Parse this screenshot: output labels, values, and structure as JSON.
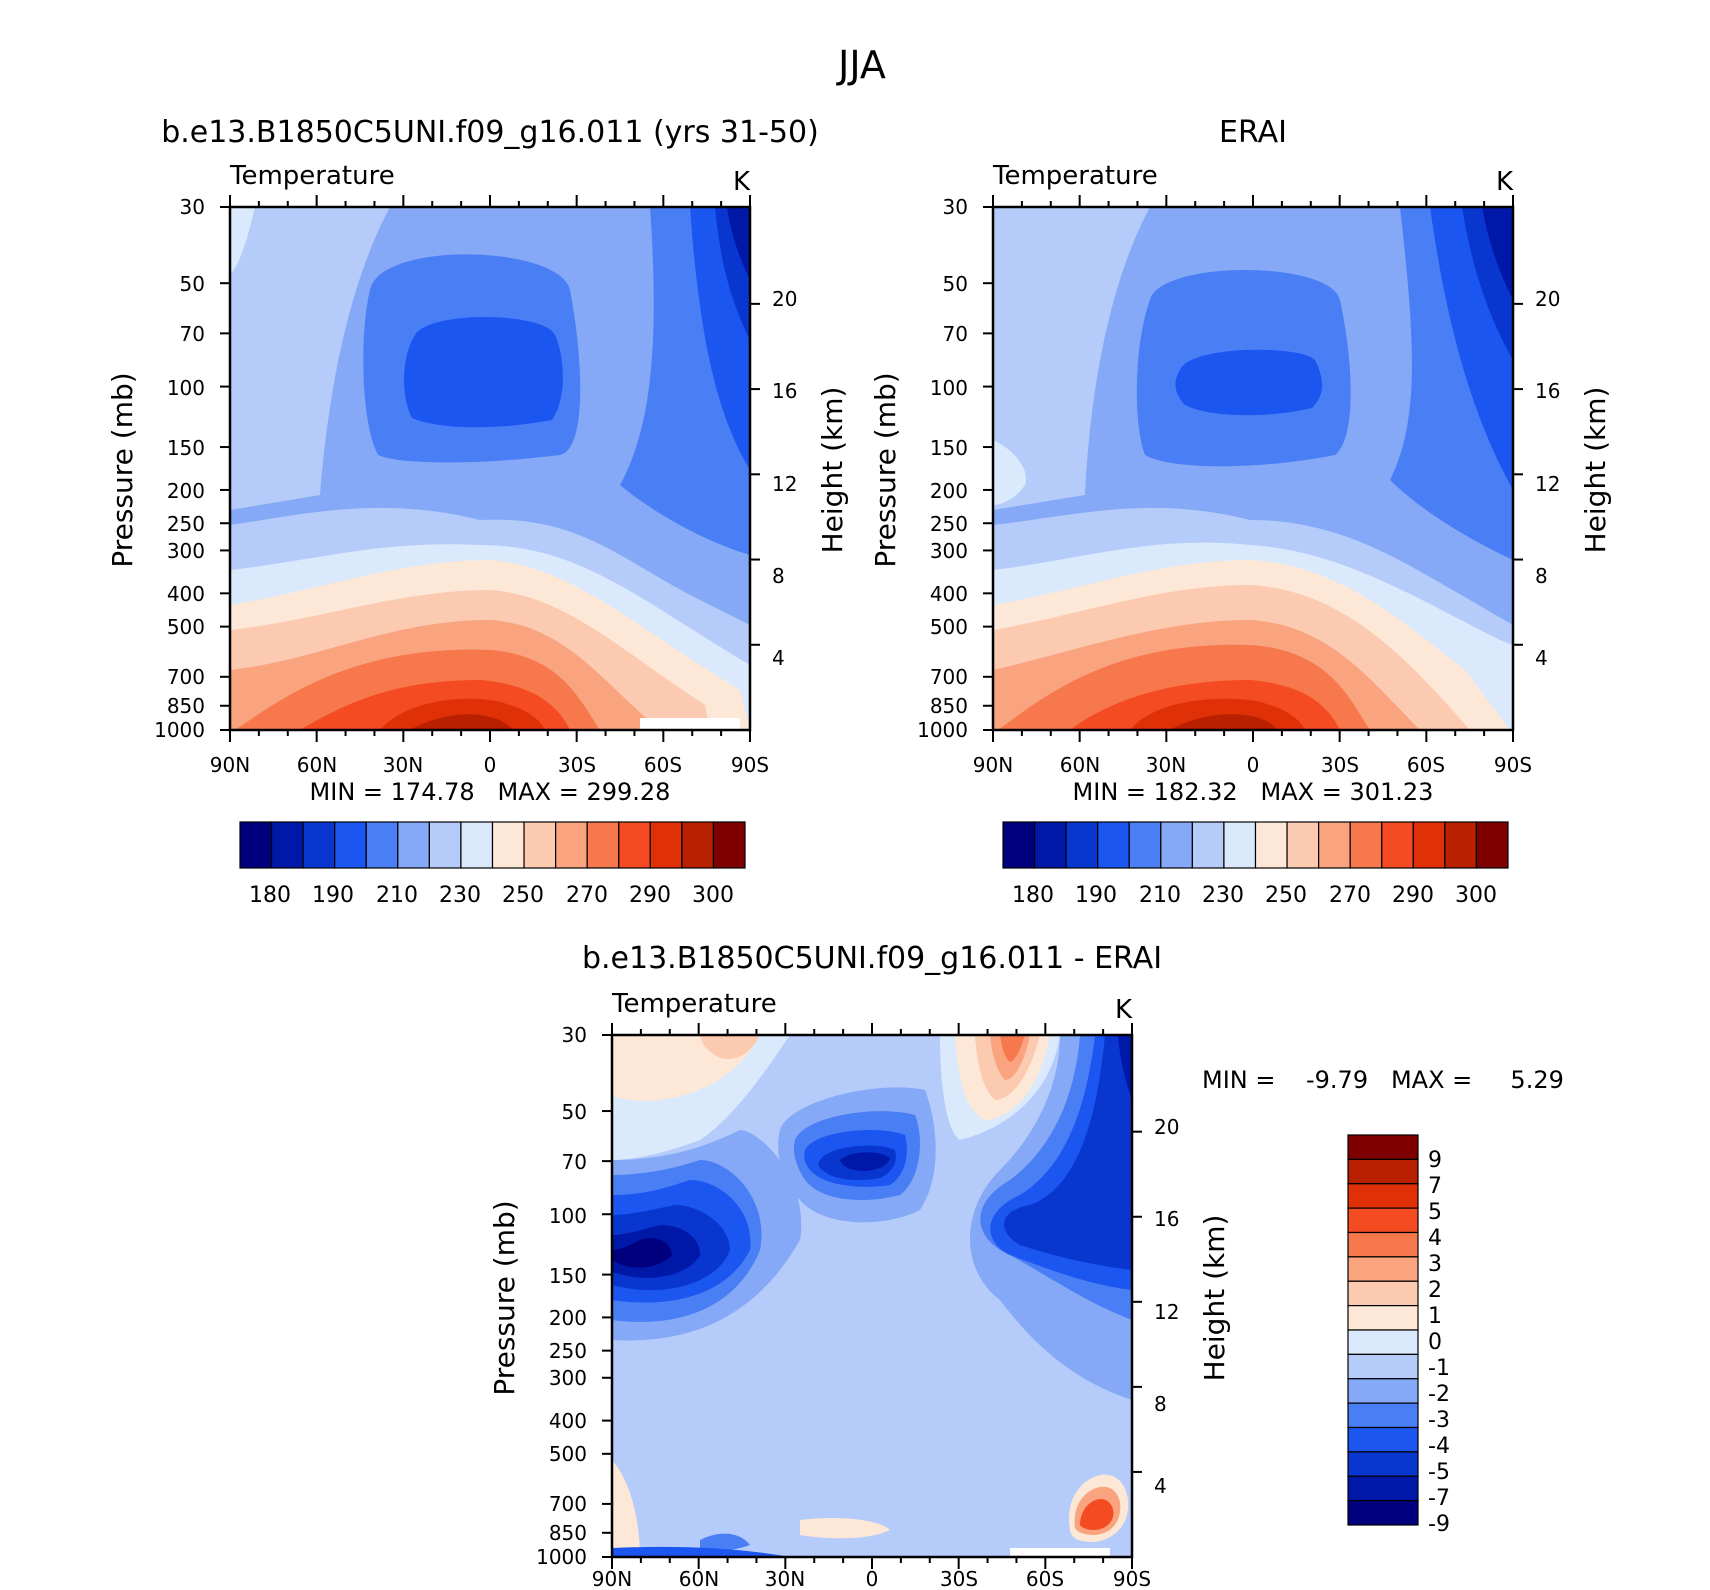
{
  "figure": {
    "title": "JJA"
  },
  "chart_data": [
    {
      "type": "heatmap",
      "title": "b.e13.B1850C5UNI.f09_g16.011 (yrs 31-50)",
      "subtitle_left": "Temperature",
      "subtitle_right": "K",
      "ylabel": "Pressure (mb)",
      "ylabel_right": "Height (km)",
      "x_ticks": [
        "90N",
        "60N",
        "30N",
        "0",
        "30S",
        "60S",
        "90S"
      ],
      "y_ticks": [
        30,
        50,
        70,
        100,
        150,
        200,
        250,
        300,
        400,
        500,
        700,
        850,
        1000
      ],
      "y_ticks_right": [
        20,
        16,
        12,
        8,
        4
      ],
      "y_scale": "log",
      "stats": "MIN = 174.78   MAX = 299.28",
      "colorbar": {
        "orientation": "horizontal",
        "labels": [
          "180",
          "190",
          "210",
          "230",
          "250",
          "270",
          "290",
          "300"
        ],
        "colors": [
          "#00007f",
          "#0018a8",
          "#0a36d0",
          "#1b56f0",
          "#4a7ef5",
          "#85a9f7",
          "#b5ccfa",
          "#dbe9fc",
          "#fde8d7",
          "#fbcab1",
          "#f9a37f",
          "#f7784c",
          "#f44b22",
          "#e03008",
          "#b82000",
          "#7f0000"
        ]
      }
    },
    {
      "type": "heatmap",
      "title": "ERAI",
      "subtitle_left": "Temperature",
      "subtitle_right": "K",
      "ylabel": "Pressure (mb)",
      "ylabel_right": "Height (km)",
      "x_ticks": [
        "90N",
        "60N",
        "30N",
        "0",
        "30S",
        "60S",
        "90S"
      ],
      "y_ticks": [
        30,
        50,
        70,
        100,
        150,
        200,
        250,
        300,
        400,
        500,
        700,
        850,
        1000
      ],
      "y_ticks_right": [
        20,
        16,
        12,
        8,
        4
      ],
      "y_scale": "log",
      "stats": "MIN = 182.32   MAX = 301.23"
    },
    {
      "type": "heatmap",
      "title": "b.e13.B1850C5UNI.f09_g16.011 - ERAI",
      "subtitle_left": "Temperature",
      "subtitle_right": "K",
      "ylabel": "Pressure (mb)",
      "ylabel_right": "Height (km)",
      "x_ticks": [
        "90N",
        "60N",
        "30N",
        "0",
        "30S",
        "60S",
        "90S"
      ],
      "y_ticks": [
        30,
        50,
        70,
        100,
        150,
        200,
        250,
        300,
        400,
        500,
        700,
        850,
        1000
      ],
      "y_ticks_right": [
        20,
        16,
        12,
        8,
        4
      ],
      "y_scale": "log",
      "stats": "MIN =    -9.79   MAX =     5.29",
      "colorbar": {
        "orientation": "vertical",
        "labels": [
          "9",
          "7",
          "5",
          "4",
          "3",
          "2",
          "1",
          "0",
          "-1",
          "-2",
          "-3",
          "-4",
          "-5",
          "-7",
          "-9"
        ],
        "colors": [
          "#7f0000",
          "#b82000",
          "#e03008",
          "#f44b22",
          "#f7784c",
          "#f9a37f",
          "#fbcab1",
          "#fde8d7",
          "#dbe9fc",
          "#b5ccfa",
          "#85a9f7",
          "#4a7ef5",
          "#1b56f0",
          "#0a36d0",
          "#0018a8",
          "#00007f"
        ]
      }
    }
  ]
}
